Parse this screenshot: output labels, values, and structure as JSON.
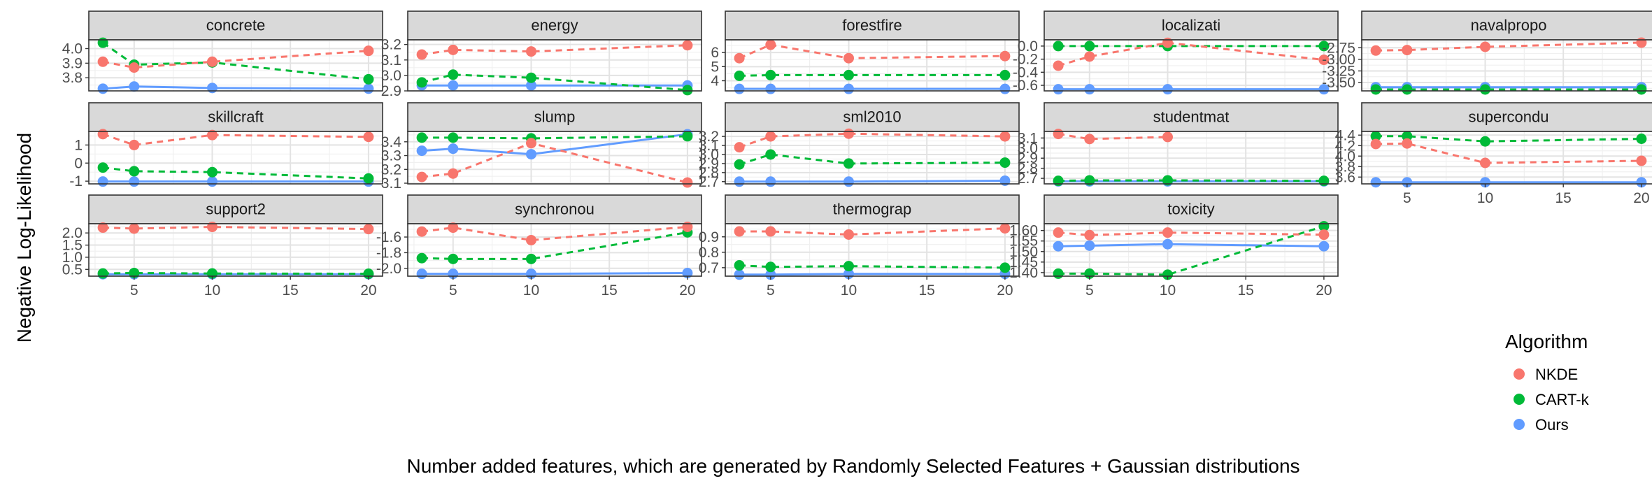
{
  "chart_data": {
    "type": "line",
    "xlabel": "Number added features, which are generated by Randomly Selected Features + Gaussian distributions",
    "ylabel": "Negative Log-Likelihood",
    "x": [
      3,
      5,
      10,
      20
    ],
    "xlim": [
      2.1,
      20.9
    ],
    "xticks": [
      5,
      10,
      15,
      20
    ],
    "legend": {
      "title": "Algorithm",
      "position": "right",
      "entries": [
        {
          "name": "NKDE",
          "color": "#F8766D",
          "linetype": "dashed"
        },
        {
          "name": "CART-k",
          "color": "#00BA38",
          "linetype": "dashed"
        },
        {
          "name": "Ours",
          "color": "#619CFF",
          "linetype": "solid"
        }
      ]
    },
    "panels": [
      {
        "title": "concrete",
        "ylim": [
          3.71,
          4.06
        ],
        "yticks": [
          3.8,
          3.9,
          4.0
        ],
        "yticklabels": [
          "3.8",
          "3.9",
          "4.0"
        ],
        "series": [
          {
            "name": "NKDE",
            "values": [
              3.91,
              3.87,
              3.91,
              3.985
            ]
          },
          {
            "name": "CART-k",
            "values": [
              4.04,
              3.89,
              3.905,
              3.79
            ]
          },
          {
            "name": "Ours",
            "values": [
              3.725,
              3.74,
              3.73,
              3.725
            ]
          }
        ]
      },
      {
        "title": "energy",
        "ylim": [
          2.9,
          3.23
        ],
        "yticks": [
          2.9,
          3.0,
          3.1,
          3.2
        ],
        "yticklabels": [
          "2.9",
          "3.0",
          "3.1",
          "3.2"
        ],
        "series": [
          {
            "name": "NKDE",
            "values": [
              3.135,
              3.165,
              3.155,
              3.195
            ]
          },
          {
            "name": "CART-k",
            "values": [
              2.955,
              3.005,
              2.985,
              2.905
            ]
          },
          {
            "name": "Ours",
            "values": [
              2.935,
              2.935,
              2.935,
              2.935
            ]
          }
        ]
      },
      {
        "title": "forestfire",
        "ylim": [
          3.28,
          6.9
        ],
        "yticks": [
          4,
          5,
          6
        ],
        "yticklabels": [
          "4",
          "5",
          "6"
        ],
        "series": [
          {
            "name": "NKDE",
            "values": [
              5.6,
              6.55,
              5.6,
              5.75
            ]
          },
          {
            "name": "CART-k",
            "values": [
              4.35,
              4.4,
              4.4,
              4.4
            ]
          },
          {
            "name": "Ours",
            "values": [
              3.42,
              3.42,
              3.42,
              3.42
            ]
          }
        ]
      },
      {
        "title": "localizati",
        "ylim": [
          -0.685,
          0.095
        ],
        "yticks": [
          -0.6,
          -0.4,
          -0.2,
          0.0
        ],
        "yticklabels": [
          "-0.6",
          "-0.4",
          "-0.2",
          "0.0"
        ],
        "series": [
          {
            "name": "NKDE",
            "values": [
              -0.3,
              -0.16,
              0.05,
              -0.21
            ]
          },
          {
            "name": "CART-k",
            "values": [
              0.0,
              0.0,
              0.0,
              0.0
            ]
          },
          {
            "name": "Ours",
            "values": [
              -0.66,
              -0.66,
              -0.66,
              -0.66
            ]
          }
        ]
      },
      {
        "title": "navalpropo",
        "ylim": [
          -3.68,
          -2.58
        ],
        "yticks": [
          -3.5,
          -3.25,
          -3.0,
          -2.75
        ],
        "yticklabels": [
          "-3.50",
          "-3.25",
          "-3.00",
          "-2.75"
        ],
        "series": [
          {
            "name": "NKDE",
            "values": [
              -2.81,
              -2.8,
              -2.73,
              -2.64
            ]
          },
          {
            "name": "CART-k",
            "values": [
              -3.65,
              -3.65,
              -3.65,
              -3.65
            ]
          },
          {
            "name": "Ours",
            "values": [
              -3.6,
              -3.6,
              -3.6,
              -3.6
            ]
          }
        ]
      },
      {
        "title": "skillcraft",
        "ylim": [
          -1.15,
          1.75
        ],
        "yticks": [
          -1,
          0,
          1
        ],
        "yticklabels": [
          "-1",
          "0",
          "1"
        ],
        "series": [
          {
            "name": "NKDE",
            "values": [
              1.6,
              1.0,
              1.55,
              1.45
            ]
          },
          {
            "name": "CART-k",
            "values": [
              -0.25,
              -0.45,
              -0.5,
              -0.85
            ]
          },
          {
            "name": "Ours",
            "values": [
              -1.02,
              -1.02,
              -1.02,
              -1.02
            ]
          }
        ]
      },
      {
        "title": "slump",
        "ylim": [
          3.095,
          3.475
        ],
        "yticks": [
          3.1,
          3.2,
          3.3,
          3.4
        ],
        "yticklabels": [
          "3.1",
          "3.2",
          "3.3",
          "3.4"
        ],
        "series": [
          {
            "name": "NKDE",
            "values": [
              3.145,
              3.17,
              3.39,
              3.105
            ]
          },
          {
            "name": "CART-k",
            "values": [
              3.43,
              3.43,
              3.425,
              3.44
            ]
          },
          {
            "name": "Ours",
            "values": [
              3.335,
              3.35,
              3.31,
              3.455
            ]
          }
        ]
      },
      {
        "title": "sml2010",
        "ylim": [
          2.675,
          3.255
        ],
        "yticks": [
          2.7,
          2.8,
          2.9,
          3.0,
          3.1,
          3.2
        ],
        "yticklabels": [
          "2.7",
          "2.8",
          "2.9",
          "3.0",
          "3.1",
          "3.2"
        ],
        "series": [
          {
            "name": "NKDE",
            "values": [
              3.08,
              3.2,
              3.23,
              3.2
            ]
          },
          {
            "name": "CART-k",
            "values": [
              2.89,
              3.0,
              2.9,
              2.91
            ]
          },
          {
            "name": "Ours",
            "values": [
              2.7,
              2.7,
              2.7,
              2.71
            ]
          }
        ]
      },
      {
        "title": "studentmat",
        "ylim": [
          2.645,
          3.165
        ],
        "yticks": [
          2.7,
          2.8,
          2.9,
          3.0,
          3.1
        ],
        "yticklabels": [
          "2.7",
          "2.8",
          "2.9",
          "3.0",
          "3.1"
        ],
        "series": [
          {
            "name": "NKDE",
            "values": [
              3.14,
              3.09,
              3.11,
              null
            ]
          },
          {
            "name": "CART-k",
            "values": [
              2.675,
              2.68,
              2.68,
              2.675
            ]
          },
          {
            "name": "Ours",
            "values": [
              2.67,
              2.67,
              2.67,
              2.67
            ]
          }
        ]
      },
      {
        "title": "supercondu",
        "ylim": [
          3.47,
          4.47
        ],
        "yticks": [
          3.6,
          3.8,
          4.0,
          4.2,
          4.4
        ],
        "yticklabels": [
          "3.6",
          "3.8",
          "4.0",
          "4.2",
          "4.4"
        ],
        "series": [
          {
            "name": "NKDE",
            "values": [
              4.23,
              4.24,
              3.87,
              3.91
            ]
          },
          {
            "name": "CART-k",
            "values": [
              4.38,
              4.38,
              4.28,
              4.33
            ]
          },
          {
            "name": "Ours",
            "values": [
              3.5,
              3.5,
              3.5,
              3.5
            ]
          }
        ]
      },
      {
        "title": "support2",
        "ylim": [
          0.22,
          2.38
        ],
        "yticks": [
          0.5,
          1.0,
          1.5,
          2.0
        ],
        "yticklabels": [
          "0.5",
          "1.0",
          "1.5",
          "2.0"
        ],
        "series": [
          {
            "name": "NKDE",
            "values": [
              2.22,
              2.18,
              2.25,
              2.16
            ]
          },
          {
            "name": "CART-k",
            "values": [
              0.33,
              0.35,
              0.33,
              0.32
            ]
          },
          {
            "name": "Ours",
            "values": [
              0.3,
              0.3,
              0.3,
              0.3
            ]
          }
        ]
      },
      {
        "title": "synchronou",
        "ylim": [
          -2.1,
          -1.43
        ],
        "yticks": [
          -2.0,
          -1.8,
          -1.6
        ],
        "yticklabels": [
          "-2.0",
          "-1.8",
          "-1.6"
        ],
        "series": [
          {
            "name": "NKDE",
            "values": [
              -1.53,
              -1.48,
              -1.64,
              -1.47
            ]
          },
          {
            "name": "CART-k",
            "values": [
              -1.87,
              -1.88,
              -1.88,
              -1.54
            ]
          },
          {
            "name": "Ours",
            "values": [
              -2.07,
              -2.07,
              -2.07,
              -2.06
            ]
          }
        ]
      },
      {
        "title": "thermograp",
        "ylim": [
          0.645,
          0.985
        ],
        "yticks": [
          0.7,
          0.8,
          0.9
        ],
        "yticklabels": [
          "0.7",
          "0.8",
          "0.9"
        ],
        "series": [
          {
            "name": "NKDE",
            "values": [
              0.935,
              0.935,
              0.915,
              0.955
            ]
          },
          {
            "name": "CART-k",
            "values": [
              0.715,
              0.705,
              0.71,
              0.7
            ]
          },
          {
            "name": "Ours",
            "values": [
              0.655,
              0.655,
              0.66,
              0.66
            ]
          }
        ]
      },
      {
        "title": "toxicity",
        "ylim": [
          1.383,
          1.632
        ],
        "yticks": [
          1.4,
          1.45,
          1.5,
          1.55,
          1.6
        ],
        "yticklabels": [
          "1.40",
          "1.45",
          "1.50",
          "1.55",
          "1.60"
        ],
        "series": [
          {
            "name": "NKDE",
            "values": [
              1.59,
              1.578,
              1.59,
              1.58
            ]
          },
          {
            "name": "CART-k",
            "values": [
              1.395,
              1.395,
              1.39,
              1.62
            ]
          },
          {
            "name": "Ours",
            "values": [
              1.525,
              1.528,
              1.535,
              1.525
            ]
          }
        ]
      }
    ]
  }
}
